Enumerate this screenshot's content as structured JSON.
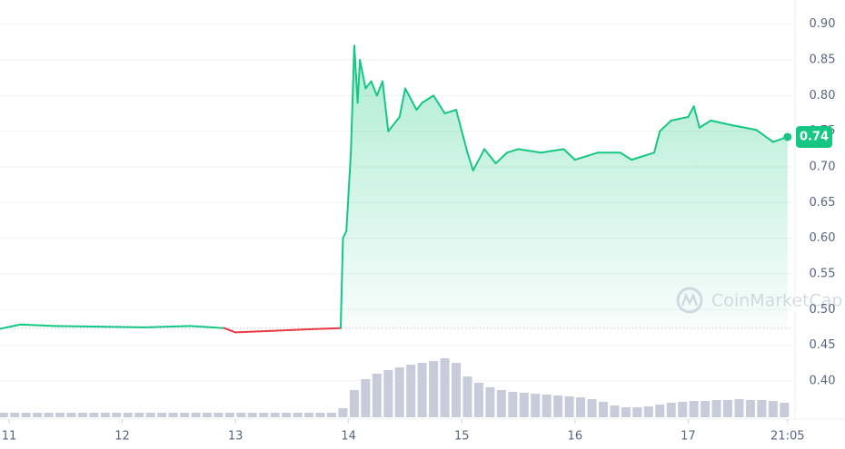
{
  "chart_data": {
    "type": "line",
    "x": [
      10.92,
      11.1,
      11.4,
      11.8,
      12.2,
      12.6,
      12.9,
      13.0,
      13.3,
      13.6,
      13.93,
      13.95,
      13.98,
      14.02,
      14.05,
      14.08,
      14.1,
      14.15,
      14.2,
      14.25,
      14.3,
      14.35,
      14.45,
      14.5,
      14.6,
      14.65,
      14.75,
      14.85,
      14.95,
      15.05,
      15.1,
      15.2,
      15.3,
      15.4,
      15.5,
      15.7,
      15.9,
      16.0,
      16.2,
      16.4,
      16.5,
      16.7,
      16.75,
      16.85,
      17.0,
      17.05,
      17.1,
      17.2,
      17.4,
      17.6,
      17.75,
      17.878
    ],
    "series": [
      {
        "color": "#16c784",
        "below_color": "#ea3943",
        "values": [
          0.473,
          0.479,
          0.477,
          0.476,
          0.475,
          0.477,
          0.474,
          0.468,
          0.47,
          0.472,
          0.474,
          0.6,
          0.61,
          0.72,
          0.87,
          0.79,
          0.85,
          0.81,
          0.82,
          0.8,
          0.82,
          0.75,
          0.77,
          0.81,
          0.78,
          0.79,
          0.8,
          0.775,
          0.78,
          0.72,
          0.695,
          0.725,
          0.705,
          0.72,
          0.725,
          0.72,
          0.725,
          0.71,
          0.72,
          0.72,
          0.71,
          0.72,
          0.75,
          0.765,
          0.77,
          0.785,
          0.755,
          0.765,
          0.758,
          0.752,
          0.735,
          0.742
        ]
      },
      {
        "type": "bar",
        "axis": "y2",
        "color": "#c8cbd9",
        "x": [
          10.95,
          11.05,
          11.15,
          11.25,
          11.35,
          11.45,
          11.55,
          11.65,
          11.75,
          11.85,
          11.95,
          12.05,
          12.15,
          12.25,
          12.35,
          12.45,
          12.55,
          12.65,
          12.75,
          12.85,
          12.95,
          13.05,
          13.15,
          13.25,
          13.35,
          13.45,
          13.55,
          13.65,
          13.75,
          13.85,
          13.95,
          14.05,
          14.15,
          14.25,
          14.35,
          14.45,
          14.55,
          14.65,
          14.75,
          14.85,
          14.95,
          15.05,
          15.15,
          15.25,
          15.35,
          15.45,
          15.55,
          15.65,
          15.75,
          15.85,
          15.95,
          16.05,
          16.15,
          16.25,
          16.35,
          16.45,
          16.55,
          16.65,
          16.75,
          16.85,
          16.95,
          17.05,
          17.15,
          17.25,
          17.35,
          17.45,
          17.55,
          17.65,
          17.75,
          17.85
        ],
        "values": [
          5,
          5,
          5,
          5,
          5,
          5,
          5,
          5,
          5,
          5,
          5,
          5,
          5,
          5,
          5,
          5,
          5,
          5,
          5,
          5,
          5,
          5,
          5,
          5,
          5,
          5,
          5,
          5,
          5,
          5,
          10,
          30,
          42,
          48,
          52,
          55,
          58,
          60,
          62,
          65,
          60,
          45,
          38,
          33,
          30,
          28,
          27,
          26,
          25,
          24,
          23,
          22,
          20,
          17,
          13,
          11,
          11,
          12,
          14,
          16,
          17,
          18,
          18,
          19,
          19,
          20,
          19,
          19,
          18,
          16
        ]
      }
    ],
    "baseline": 0.474,
    "current_price": 0.742,
    "current_price_label": "0.74",
    "xlim": [
      10.92,
      17.92
    ],
    "xticks": [
      11,
      12,
      13,
      14,
      15,
      16,
      17,
      {
        "value": 17.878,
        "label": "21:05"
      }
    ],
    "ylim": [
      0.349,
      0.934
    ],
    "yticks": [
      {
        "value": 0.4,
        "label": "0.40"
      },
      0.45,
      {
        "value": 0.5,
        "label": "0.50"
      },
      0.55,
      {
        "value": 0.6,
        "label": "0.60"
      },
      0.65,
      {
        "value": 0.7,
        "label": "0.70"
      },
      0.75,
      {
        "value": 0.8,
        "label": "0.80"
      },
      0.85,
      {
        "value": 0.9,
        "label": "0.90"
      }
    ],
    "y2lim": [
      0,
      100
    ],
    "grid": true,
    "watermark": "CoinMarketCap"
  }
}
